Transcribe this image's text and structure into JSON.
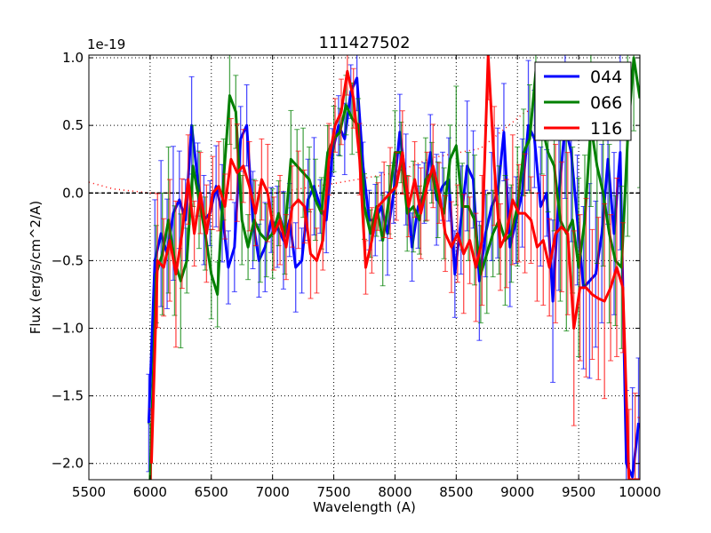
{
  "chart_data": {
    "type": "line",
    "title": "111427502",
    "xlabel": "Wavelength (A)",
    "ylabel": "Flux (erg/s/cm^2/A)",
    "y_offset_label": "1e-19",
    "xlim": [
      5500,
      10000
    ],
    "ylim": [
      -2.12,
      1.02
    ],
    "xticks": [
      5500,
      6000,
      6500,
      7000,
      7500,
      8000,
      8500,
      9000,
      9500,
      10000
    ],
    "xtick_labels": [
      "5500",
      "6000",
      "6500",
      "7000",
      "7500",
      "8000",
      "8500",
      "9000",
      "9500",
      "10000"
    ],
    "yticks": [
      1.0,
      0.5,
      0.0,
      -0.5,
      -1.0,
      -1.5,
      -2.0
    ],
    "ytick_labels": [
      "1.0",
      "0.5",
      "0.0",
      "−0.5",
      "−1.0",
      "−1.5",
      "−2.0"
    ],
    "grid": true,
    "legend_position": "top-right",
    "x_start": 6000,
    "x_step": 50,
    "error_model": [
      [
        6000,
        0.45
      ],
      [
        6300,
        0.3
      ],
      [
        7400,
        0.22
      ],
      [
        7900,
        0.28
      ],
      [
        8500,
        0.4
      ],
      [
        9300,
        0.6
      ]
    ],
    "series": [
      {
        "name": "044",
        "color": "#0000ff",
        "values": [
          -1.7,
          -0.5,
          -0.3,
          -0.45,
          -0.15,
          -0.05,
          -0.2,
          0.5,
          0.1,
          -0.2,
          -0.15,
          0.05,
          -0.15,
          -0.55,
          -0.4,
          0.4,
          0.5,
          -0.2,
          -0.5,
          -0.4,
          -0.2,
          -0.25,
          -0.35,
          -0.2,
          -0.55,
          -0.5,
          -0.05,
          0.05,
          -0.1,
          -0.2,
          0.3,
          0.5,
          0.4,
          0.75,
          0.85,
          0.2,
          -0.2,
          -0.2,
          -0.1,
          -0.3,
          0.0,
          0.45,
          0.1,
          -0.4,
          -0.1,
          0.0,
          0.3,
          -0.05,
          0.05,
          0.1,
          -0.6,
          -0.2,
          0.2,
          0.1,
          -0.65,
          -0.3,
          -0.1,
          0.0,
          0.45,
          -0.4,
          -0.2,
          0.0,
          0.5,
          0.4,
          -0.1,
          0.0,
          -0.8,
          0.0,
          0.5,
          0.3,
          -0.2,
          -0.7,
          -0.65,
          -0.6,
          -0.3,
          0.25,
          -0.3,
          0.3,
          -2.0,
          -2.1,
          -1.7
        ]
      },
      {
        "name": "066",
        "color": "#008000",
        "values": [
          -2.2,
          -0.6,
          -0.45,
          -0.2,
          -0.5,
          -0.65,
          -0.5,
          0.2,
          -0.05,
          -0.3,
          -0.6,
          -0.75,
          0.1,
          0.72,
          0.6,
          -0.2,
          -0.4,
          -0.2,
          -0.3,
          -0.35,
          -0.3,
          -0.15,
          -0.3,
          0.25,
          0.2,
          0.15,
          0.1,
          -0.05,
          -0.15,
          0.3,
          0.4,
          0.45,
          0.65,
          0.55,
          0.5,
          -0.1,
          -0.3,
          -0.1,
          -0.35,
          -0.05,
          0.3,
          0.3,
          -0.15,
          -0.1,
          -0.2,
          0.1,
          0.15,
          -0.05,
          -0.15,
          0.25,
          0.35,
          -0.1,
          -0.1,
          -0.2,
          -0.6,
          -0.45,
          -0.3,
          -0.2,
          -0.35,
          -0.3,
          -0.1,
          0.3,
          0.4,
          0.9,
          0.5,
          0.3,
          0.2,
          -0.2,
          -0.3,
          -0.2,
          -0.55,
          -0.2,
          0.5,
          0.2,
          0.0,
          -0.3,
          -0.5,
          -0.55,
          0.4,
          1.0,
          0.7
        ]
      },
      {
        "name": "116",
        "color": "#ff0000",
        "values": [
          -2.0,
          -0.5,
          -0.55,
          -0.35,
          -0.6,
          -0.3,
          0.1,
          -0.3,
          0.0,
          -0.3,
          0.0,
          0.05,
          -0.1,
          0.25,
          0.15,
          0.2,
          0.05,
          -0.15,
          0.1,
          0.0,
          -0.3,
          -0.2,
          -0.4,
          -0.1,
          -0.05,
          -0.1,
          -0.45,
          -0.5,
          -0.35,
          0.25,
          0.5,
          0.6,
          0.9,
          0.7,
          0.25,
          -0.55,
          -0.35,
          -0.1,
          -0.05,
          0.0,
          0.05,
          0.3,
          -0.1,
          0.1,
          -0.15,
          0.05,
          0.2,
          0.0,
          -0.3,
          -0.4,
          -0.3,
          -0.45,
          -0.35,
          -0.55,
          -0.35,
          1.05,
          0.2,
          -0.4,
          -0.3,
          -0.05,
          -0.15,
          -0.15,
          -0.2,
          -0.4,
          -0.35,
          -0.55,
          -0.3,
          -0.25,
          -0.3,
          -1.0,
          -0.7,
          -0.7,
          -0.75,
          -0.78,
          -0.8,
          -0.7,
          -0.55,
          -0.7,
          -2.2,
          -2.2,
          -2.2
        ]
      }
    ],
    "reference_lines": [
      {
        "style": "dotted",
        "color": "#ff0000",
        "x": [
          5500,
          5700,
          6000,
          7000,
          7500,
          8000,
          8300,
          8700,
          9050,
          9300
        ],
        "y": [
          0.08,
          0.03,
          0.0,
          0.0,
          0.07,
          0.15,
          0.26,
          0.33,
          0.59,
          0.7
        ]
      },
      {
        "style": "dashed",
        "color": "#000000",
        "x": [
          5500,
          10000
        ],
        "y": [
          0.0,
          0.0
        ]
      }
    ]
  }
}
